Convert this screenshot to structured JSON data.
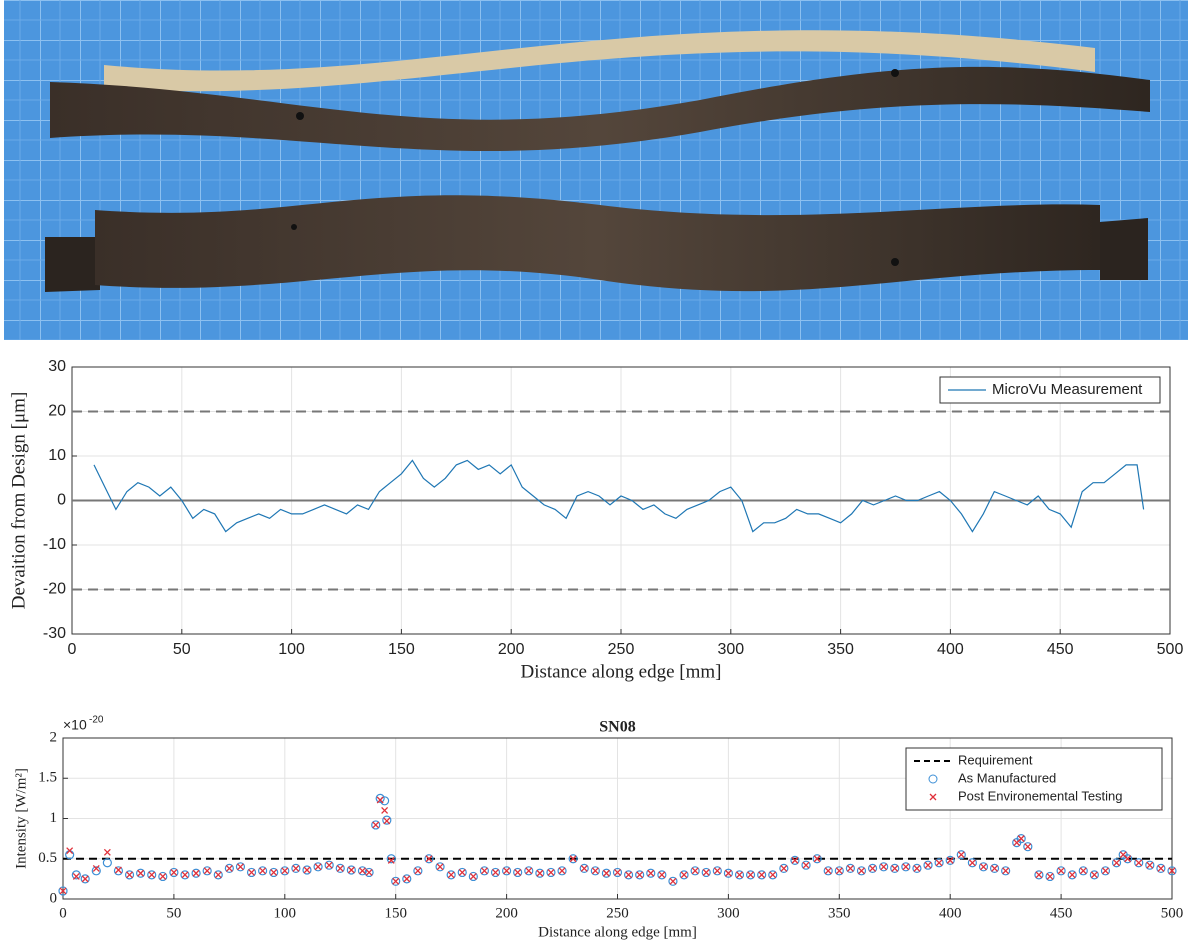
{
  "chart_data": [
    {
      "type": "line",
      "xlabel": "Distance along edge [mm]",
      "ylabel": "Devaition from Design [μm]",
      "x": [
        10,
        15,
        20,
        25,
        30,
        35,
        40,
        45,
        50,
        55,
        60,
        65,
        70,
        75,
        80,
        85,
        90,
        95,
        100,
        105,
        110,
        115,
        120,
        125,
        130,
        135,
        140,
        145,
        150,
        155,
        160,
        165,
        170,
        175,
        180,
        185,
        190,
        195,
        200,
        205,
        210,
        215,
        220,
        225,
        230,
        235,
        240,
        245,
        250,
        255,
        260,
        265,
        270,
        275,
        280,
        285,
        290,
        295,
        300,
        305,
        310,
        315,
        320,
        325,
        330,
        335,
        340,
        345,
        350,
        355,
        360,
        365,
        370,
        375,
        380,
        385,
        390,
        395,
        400,
        405,
        410,
        415,
        420,
        425,
        430,
        435,
        440,
        445,
        450,
        455,
        460,
        465,
        470,
        475,
        480,
        485,
        488
      ],
      "series": [
        {
          "name": "MicroVu Measurement",
          "color": "#1f77b4",
          "values": [
            8,
            3,
            -2,
            2,
            4,
            3,
            1,
            3,
            0,
            -4,
            -2,
            -3,
            -7,
            -5,
            -4,
            -3,
            -4,
            -2,
            -3,
            -3,
            -2,
            -1,
            -2,
            -3,
            -1,
            -2,
            2,
            4,
            6,
            9,
            5,
            3,
            5,
            8,
            9,
            7,
            8,
            6,
            8,
            3,
            1,
            -1,
            -2,
            -4,
            1,
            2,
            1,
            -1,
            1,
            0,
            -2,
            -1,
            -3,
            -4,
            -2,
            -1,
            0,
            2,
            3,
            0,
            -7,
            -5,
            -5,
            -4,
            -2,
            -3,
            -3,
            -4,
            -5,
            -3,
            0,
            -1,
            0,
            1,
            0,
            0,
            1,
            2,
            0,
            -3,
            -7,
            -3,
            2,
            1,
            0,
            -1,
            1,
            -2,
            -3,
            -6,
            2,
            4,
            4,
            6,
            8,
            8,
            -2
          ]
        }
      ],
      "xlim": [
        0,
        500
      ],
      "ylim": [
        -30,
        30
      ],
      "xticks": [
        0,
        50,
        100,
        150,
        200,
        250,
        300,
        350,
        400,
        450,
        500
      ],
      "yticks": [
        -30,
        -20,
        -10,
        0,
        10,
        20,
        30
      ],
      "grid": true,
      "legend": "upper right",
      "hlines": [
        {
          "value": 20,
          "style": "dashed",
          "color": "#777777"
        },
        {
          "value": -20,
          "style": "dashed",
          "color": "#777777"
        },
        {
          "value": 0,
          "style": "solid",
          "color": "#777777"
        }
      ]
    },
    {
      "type": "scatter",
      "title": "SN08",
      "xlabel": "Distance along edge [mm]",
      "ylabel": "Intensity [W/m²]",
      "y_multiplier": "×10",
      "y_multiplier_exponent": "-20",
      "x": [
        0,
        3,
        6,
        10,
        15,
        20,
        25,
        30,
        35,
        40,
        45,
        50,
        55,
        60,
        65,
        70,
        75,
        80,
        85,
        90,
        95,
        100,
        105,
        110,
        115,
        120,
        125,
        130,
        135,
        138,
        141,
        143,
        145,
        146,
        148,
        150,
        155,
        160,
        165,
        170,
        175,
        180,
        185,
        190,
        195,
        200,
        205,
        210,
        215,
        220,
        225,
        230,
        235,
        240,
        245,
        250,
        255,
        260,
        265,
        270,
        275,
        280,
        285,
        290,
        295,
        300,
        305,
        310,
        315,
        320,
        325,
        330,
        335,
        340,
        345,
        350,
        355,
        360,
        365,
        370,
        375,
        380,
        385,
        390,
        395,
        400,
        405,
        410,
        415,
        420,
        425,
        430,
        432,
        435,
        440,
        445,
        450,
        455,
        460,
        465,
        470,
        475,
        478,
        480,
        485,
        490,
        495,
        500
      ],
      "reference_line": {
        "name": "Requirement",
        "value": 0.5,
        "color": "#000000",
        "style": "dashed"
      },
      "series": [
        {
          "name": "As Manufactured",
          "marker": "circle",
          "color": "#3c8fd6",
          "values": [
            0.1,
            0.55,
            0.3,
            0.25,
            0.35,
            0.45,
            0.35,
            0.3,
            0.32,
            0.3,
            0.28,
            0.33,
            0.3,
            0.32,
            0.35,
            0.3,
            0.38,
            0.4,
            0.33,
            0.35,
            0.33,
            0.35,
            0.38,
            0.36,
            0.4,
            0.42,
            0.38,
            0.36,
            0.35,
            0.33,
            0.92,
            1.25,
            1.22,
            0.98,
            0.5,
            0.22,
            0.25,
            0.35,
            0.5,
            0.4,
            0.3,
            0.33,
            0.28,
            0.35,
            0.33,
            0.35,
            0.33,
            0.35,
            0.32,
            0.33,
            0.35,
            0.5,
            0.38,
            0.35,
            0.32,
            0.33,
            0.3,
            0.3,
            0.32,
            0.3,
            0.22,
            0.3,
            0.35,
            0.33,
            0.35,
            0.32,
            0.3,
            0.3,
            0.3,
            0.3,
            0.38,
            0.48,
            0.42,
            0.5,
            0.35,
            0.35,
            0.38,
            0.35,
            0.38,
            0.4,
            0.38,
            0.4,
            0.38,
            0.42,
            0.45,
            0.48,
            0.55,
            0.45,
            0.4,
            0.38,
            0.35,
            0.7,
            0.75,
            0.65,
            0.3,
            0.28,
            0.35,
            0.3,
            0.35,
            0.3,
            0.35,
            0.45,
            0.55,
            0.5,
            0.45,
            0.42,
            0.38,
            0.35
          ]
        },
        {
          "name": "Post Environemental Testing",
          "marker": "x",
          "color": "#e0303a",
          "values": [
            0.1,
            0.6,
            0.28,
            0.25,
            0.38,
            0.58,
            0.36,
            0.3,
            0.32,
            0.3,
            0.28,
            0.33,
            0.3,
            0.32,
            0.35,
            0.3,
            0.38,
            0.4,
            0.33,
            0.35,
            0.33,
            0.35,
            0.38,
            0.36,
            0.4,
            0.42,
            0.38,
            0.36,
            0.35,
            0.33,
            0.92,
            1.23,
            1.1,
            0.97,
            0.48,
            0.22,
            0.25,
            0.35,
            0.5,
            0.4,
            0.3,
            0.33,
            0.28,
            0.35,
            0.33,
            0.35,
            0.33,
            0.35,
            0.32,
            0.33,
            0.35,
            0.5,
            0.38,
            0.35,
            0.32,
            0.33,
            0.3,
            0.3,
            0.32,
            0.3,
            0.22,
            0.3,
            0.35,
            0.33,
            0.35,
            0.32,
            0.3,
            0.3,
            0.3,
            0.3,
            0.38,
            0.48,
            0.42,
            0.5,
            0.35,
            0.35,
            0.38,
            0.35,
            0.38,
            0.4,
            0.38,
            0.4,
            0.38,
            0.42,
            0.45,
            0.48,
            0.55,
            0.45,
            0.4,
            0.38,
            0.35,
            0.7,
            0.75,
            0.65,
            0.3,
            0.28,
            0.35,
            0.3,
            0.35,
            0.3,
            0.35,
            0.45,
            0.55,
            0.5,
            0.45,
            0.42,
            0.38,
            0.35
          ]
        }
      ],
      "xlim": [
        0,
        500
      ],
      "ylim": [
        0,
        2
      ],
      "xticks": [
        0,
        50,
        100,
        150,
        200,
        250,
        300,
        350,
        400,
        450,
        500
      ],
      "yticks": [
        0,
        0.5,
        1,
        1.5,
        2
      ],
      "grid": true,
      "legend": "upper right"
    }
  ]
}
